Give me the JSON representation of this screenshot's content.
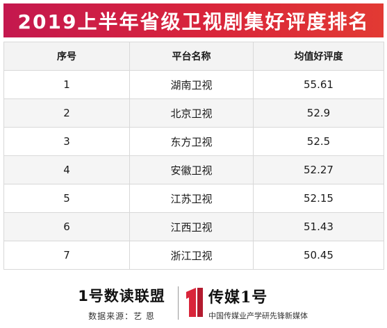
{
  "title": "2019上半年省级卫视剧集好评度排名",
  "chart_data": {
    "type": "table",
    "columns": [
      "序号",
      "平台名称",
      "均值好评度"
    ],
    "rows": [
      {
        "rank": "1",
        "platform": "湖南卫视",
        "score": "55.61"
      },
      {
        "rank": "2",
        "platform": "北京卫视",
        "score": "52.9"
      },
      {
        "rank": "3",
        "platform": "东方卫视",
        "score": "52.5"
      },
      {
        "rank": "4",
        "platform": "安徽卫视",
        "score": "52.27"
      },
      {
        "rank": "5",
        "platform": "江苏卫视",
        "score": "52.15"
      },
      {
        "rank": "6",
        "platform": "江西卫视",
        "score": "51.43"
      },
      {
        "rank": "7",
        "platform": "浙江卫视",
        "score": "50.45"
      }
    ]
  },
  "footer": {
    "brand_left": "1号数读联盟",
    "source": "数据来源：艺 恩",
    "brand_right": "传媒1号",
    "brand_right_sub": "中国传媒业产学研先锋新媒体"
  },
  "colors": {
    "title_gradient_start": "#c4184e",
    "title_gradient_end": "#e23a33",
    "logo_red": "#d9253a"
  },
  "icons": {
    "logo_mark": "red-number-one-logo-icon"
  }
}
